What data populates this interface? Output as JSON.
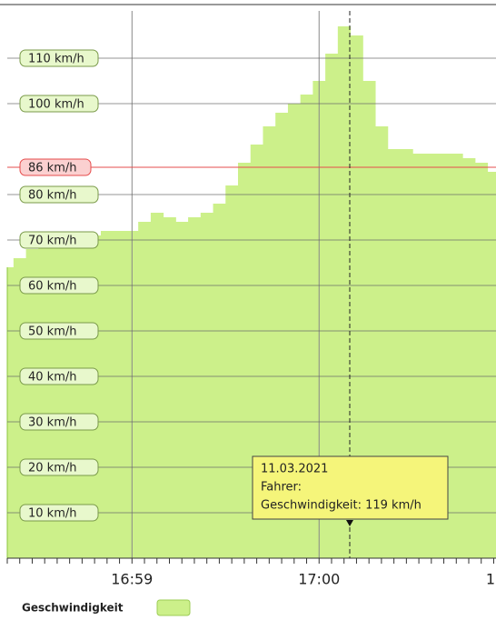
{
  "chart_data": {
    "type": "area",
    "categories": [
      null,
      null,
      null,
      null,
      null,
      null,
      null,
      null,
      null,
      null,
      "16:59",
      null,
      null,
      null,
      null,
      null,
      null,
      null,
      null,
      null,
      null,
      null,
      null,
      null,
      null,
      "17:00",
      null,
      null,
      null,
      null,
      null,
      null,
      null,
      null,
      null,
      null,
      null,
      null,
      null,
      "1"
    ],
    "series": [
      {
        "name": "Geschwindigkeit",
        "color": "#ccf08a",
        "values": [
          64,
          66,
          68,
          69,
          70,
          70,
          70,
          71,
          72,
          72,
          72,
          74,
          76,
          75,
          74,
          75,
          76,
          78,
          82,
          87,
          91,
          95,
          98,
          100,
          102,
          105,
          111,
          117,
          115,
          105,
          95,
          90,
          90,
          89,
          89,
          89,
          89,
          88,
          87,
          85
        ]
      }
    ],
    "ylim": [
      0,
      120
    ],
    "yticks": [
      {
        "value": 10,
        "label": "10 km/h"
      },
      {
        "value": 20,
        "label": "20 km/h"
      },
      {
        "value": 30,
        "label": "30 km/h"
      },
      {
        "value": 40,
        "label": "40 km/h"
      },
      {
        "value": 50,
        "label": "50 km/h"
      },
      {
        "value": 60,
        "label": "60 km/h"
      },
      {
        "value": 70,
        "label": "70 km/h"
      },
      {
        "value": 80,
        "label": "80 km/h"
      },
      {
        "value": 100,
        "label": "100 km/h"
      },
      {
        "value": 110,
        "label": "110 km/h"
      }
    ],
    "limit": {
      "value": 86,
      "label": "86 km/h",
      "color": "#e64c4c"
    },
    "tooltip": {
      "date": "11.03.2021",
      "driver": "Fahrer:",
      "speed": "Geschwindigkeit: 119 km/h"
    }
  }
}
